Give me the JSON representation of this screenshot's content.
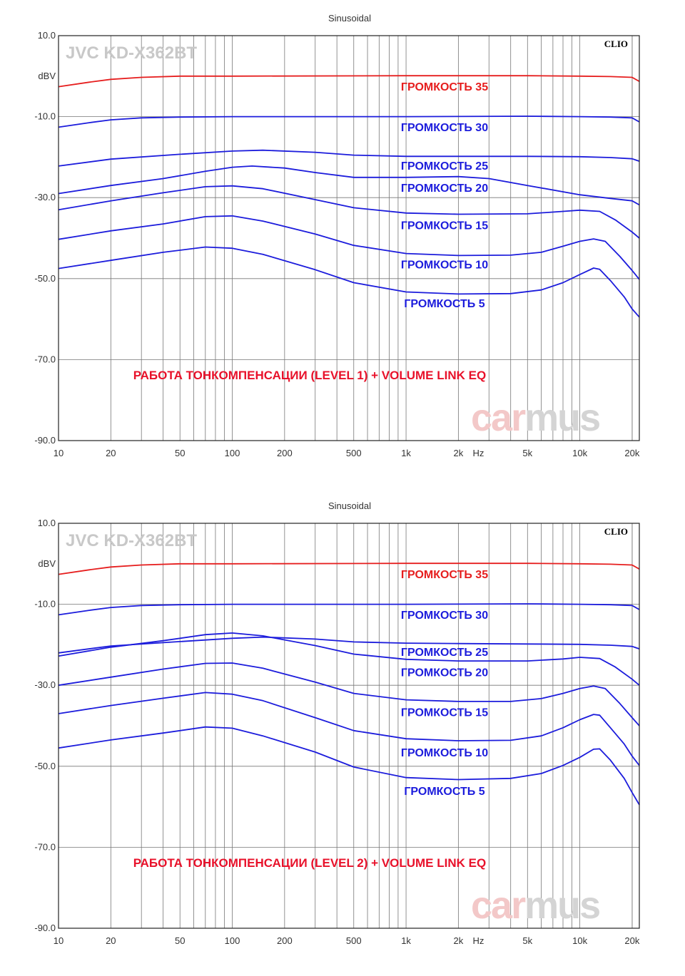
{
  "colors": {
    "red": "#e61e1e",
    "blue": "#1c1cdc",
    "grid": "#777777",
    "watermark_a": "#f3c8c8",
    "watermark_b": "#d4d4d4"
  },
  "chart_data": [
    {
      "type": "line",
      "title": "Sinusoidal",
      "model": "JVC KD-X362BT",
      "brand": "CLIO",
      "caption": "РАБОТА ТОНКОМПЕНСАЦИИ (LEVEL 1) + VOLUME LINK EQ",
      "watermark": [
        "car",
        "mus"
      ],
      "ylabel": "dBV",
      "xunit": "Hz",
      "xscale": "log",
      "xlim": [
        10,
        22000
      ],
      "ylim": [
        -90,
        10
      ],
      "yticks": [
        10,
        -10,
        -30,
        -50,
        -70,
        -90
      ],
      "ytick_labels": [
        "10.0",
        "-10.0",
        "-30.0",
        "-50.0",
        "-70.0",
        "-90.0"
      ],
      "xticks": [
        10,
        20,
        50,
        100,
        200,
        500,
        1000,
        2000,
        5000,
        10000,
        20000
      ],
      "xtick_labels": [
        "10",
        "20",
        "50",
        "100",
        "200",
        "500",
        "1k",
        "2k",
        "5k",
        "10k",
        "20k"
      ],
      "grid": true,
      "series": [
        {
          "name": "ГРОМКОСТЬ 35",
          "color": "red",
          "label_x": 1650,
          "label_y": -2.5,
          "points": [
            [
              10,
              -2.6
            ],
            [
              15,
              -1.5
            ],
            [
              20,
              -0.8
            ],
            [
              30,
              -0.3
            ],
            [
              50,
              0
            ],
            [
              100,
              0
            ],
            [
              1000,
              0.1
            ],
            [
              5000,
              0.1
            ],
            [
              10000,
              0
            ],
            [
              15000,
              -0.1
            ],
            [
              20000,
              -0.3
            ],
            [
              22000,
              -1.3
            ]
          ]
        },
        {
          "name": "ГРОМКОСТЬ 30",
          "color": "blue",
          "label_x": 1650,
          "label_y": -12.5,
          "points": [
            [
              10,
              -12.6
            ],
            [
              15,
              -11.5
            ],
            [
              20,
              -10.8
            ],
            [
              30,
              -10.3
            ],
            [
              50,
              -10.1
            ],
            [
              100,
              -10
            ],
            [
              1000,
              -10
            ],
            [
              5000,
              -9.9
            ],
            [
              10000,
              -10
            ],
            [
              15000,
              -10.1
            ],
            [
              20000,
              -10.3
            ],
            [
              22000,
              -11.3
            ]
          ]
        },
        {
          "name": "ГРОМКОСТЬ 25",
          "color": "blue",
          "label_x": 1650,
          "label_y": -22,
          "points": [
            [
              10,
              -22.2
            ],
            [
              20,
              -20.5
            ],
            [
              50,
              -19.3
            ],
            [
              100,
              -18.5
            ],
            [
              150,
              -18.3
            ],
            [
              300,
              -18.8
            ],
            [
              500,
              -19.5
            ],
            [
              1000,
              -19.8
            ],
            [
              2000,
              -19.8
            ],
            [
              5000,
              -19.8
            ],
            [
              10000,
              -19.9
            ],
            [
              15000,
              -20.1
            ],
            [
              20000,
              -20.4
            ],
            [
              22000,
              -21
            ]
          ]
        },
        {
          "name": "ГРОМКОСТЬ 20",
          "color": "blue",
          "label_x": 1650,
          "label_y": -27.5,
          "points": [
            [
              10,
              -29
            ],
            [
              20,
              -27
            ],
            [
              40,
              -25.3
            ],
            [
              70,
              -23.5
            ],
            [
              100,
              -22.5
            ],
            [
              130,
              -22.2
            ],
            [
              200,
              -22.7
            ],
            [
              300,
              -23.8
            ],
            [
              500,
              -25
            ],
            [
              1000,
              -25
            ],
            [
              2000,
              -24.8
            ],
            [
              3000,
              -25.3
            ],
            [
              5000,
              -27
            ],
            [
              10000,
              -29.3
            ],
            [
              15000,
              -30.2
            ],
            [
              20000,
              -30.8
            ],
            [
              22000,
              -31.8
            ]
          ]
        },
        {
          "name": "ГРОМКОСТЬ 15",
          "color": "blue",
          "label_x": 1650,
          "label_y": -36.7,
          "points": [
            [
              10,
              -33
            ],
            [
              20,
              -30.8
            ],
            [
              40,
              -28.8
            ],
            [
              70,
              -27.3
            ],
            [
              100,
              -27.1
            ],
            [
              150,
              -27.8
            ],
            [
              300,
              -30.5
            ],
            [
              500,
              -32.5
            ],
            [
              1000,
              -33.8
            ],
            [
              2000,
              -34.1
            ],
            [
              5000,
              -34
            ],
            [
              8000,
              -33.4
            ],
            [
              10000,
              -33.1
            ],
            [
              13000,
              -33.4
            ],
            [
              16000,
              -35.5
            ],
            [
              20000,
              -38.5
            ],
            [
              22000,
              -40
            ]
          ]
        },
        {
          "name": "ГРОМКОСТЬ 10",
          "color": "blue",
          "label_x": 1650,
          "label_y": -46.4,
          "points": [
            [
              10,
              -40.3
            ],
            [
              20,
              -38.2
            ],
            [
              40,
              -36.5
            ],
            [
              70,
              -34.7
            ],
            [
              100,
              -34.5
            ],
            [
              150,
              -35.8
            ],
            [
              300,
              -39
            ],
            [
              500,
              -41.8
            ],
            [
              1000,
              -43.8
            ],
            [
              2000,
              -44.3
            ],
            [
              4000,
              -44.2
            ],
            [
              6000,
              -43.5
            ],
            [
              8000,
              -42
            ],
            [
              10000,
              -40.8
            ],
            [
              12000,
              -40.2
            ],
            [
              14000,
              -40.8
            ],
            [
              17000,
              -44.5
            ],
            [
              20000,
              -48
            ],
            [
              22000,
              -50.2
            ]
          ]
        },
        {
          "name": "ГРОМКОСТЬ 5",
          "color": "blue",
          "label_x": 1650,
          "label_y": -56,
          "points": [
            [
              10,
              -47.5
            ],
            [
              20,
              -45.5
            ],
            [
              40,
              -43.5
            ],
            [
              70,
              -42.2
            ],
            [
              100,
              -42.5
            ],
            [
              150,
              -44
            ],
            [
              300,
              -47.8
            ],
            [
              500,
              -51
            ],
            [
              1000,
              -53.3
            ],
            [
              2000,
              -53.8
            ],
            [
              4000,
              -53.7
            ],
            [
              6000,
              -52.8
            ],
            [
              8000,
              -51
            ],
            [
              10000,
              -49
            ],
            [
              12000,
              -47.4
            ],
            [
              13000,
              -47.7
            ],
            [
              15000,
              -50.5
            ],
            [
              18000,
              -54.5
            ],
            [
              20000,
              -57.5
            ],
            [
              22000,
              -59.5
            ]
          ]
        }
      ]
    },
    {
      "type": "line",
      "title": "Sinusoidal",
      "model": "JVC KD-X362BT",
      "brand": "CLIO",
      "caption": "РАБОТА ТОНКОМПЕНСАЦИИ (LEVEL 2) + VOLUME LINK EQ",
      "watermark": [
        "car",
        "mus"
      ],
      "ylabel": "dBV",
      "xunit": "Hz",
      "xscale": "log",
      "xlim": [
        10,
        22000
      ],
      "ylim": [
        -90,
        10
      ],
      "yticks": [
        10,
        -10,
        -30,
        -50,
        -70,
        -90
      ],
      "ytick_labels": [
        "10.0",
        "-10.0",
        "-30.0",
        "-50.0",
        "-70.0",
        "-90.0"
      ],
      "xticks": [
        10,
        20,
        50,
        100,
        200,
        500,
        1000,
        2000,
        5000,
        10000,
        20000
      ],
      "xtick_labels": [
        "10",
        "20",
        "50",
        "100",
        "200",
        "500",
        "1k",
        "2k",
        "5k",
        "10k",
        "20k"
      ],
      "grid": true,
      "series": [
        {
          "name": "ГРОМКОСТЬ 35",
          "color": "red",
          "label_x": 1650,
          "label_y": -2.5,
          "points": [
            [
              10,
              -2.6
            ],
            [
              15,
              -1.5
            ],
            [
              20,
              -0.8
            ],
            [
              30,
              -0.3
            ],
            [
              50,
              0
            ],
            [
              100,
              0
            ],
            [
              1000,
              0.1
            ],
            [
              5000,
              0.1
            ],
            [
              10000,
              0
            ],
            [
              15000,
              -0.1
            ],
            [
              20000,
              -0.3
            ],
            [
              22000,
              -1.3
            ]
          ]
        },
        {
          "name": "ГРОМКОСТЬ 30",
          "color": "blue",
          "label_x": 1650,
          "label_y": -12.5,
          "points": [
            [
              10,
              -12.6
            ],
            [
              15,
              -11.5
            ],
            [
              20,
              -10.8
            ],
            [
              30,
              -10.3
            ],
            [
              50,
              -10.1
            ],
            [
              100,
              -10
            ],
            [
              1000,
              -10
            ],
            [
              5000,
              -9.9
            ],
            [
              10000,
              -10
            ],
            [
              15000,
              -10.1
            ],
            [
              20000,
              -10.3
            ],
            [
              22000,
              -11.3
            ]
          ]
        },
        {
          "name": "ГРОМКОСТЬ 25",
          "color": "blue",
          "label_x": 1650,
          "label_y": -21.7,
          "points": [
            [
              10,
              -22
            ],
            [
              20,
              -20.3
            ],
            [
              50,
              -19.2
            ],
            [
              100,
              -18.4
            ],
            [
              150,
              -18.1
            ],
            [
              300,
              -18.6
            ],
            [
              500,
              -19.3
            ],
            [
              1000,
              -19.6
            ],
            [
              2000,
              -19.7
            ],
            [
              5000,
              -19.8
            ],
            [
              10000,
              -19.9
            ],
            [
              15000,
              -20.1
            ],
            [
              20000,
              -20.4
            ],
            [
              22000,
              -21
            ]
          ]
        },
        {
          "name": "ГРОМКОСТЬ 20",
          "color": "blue",
          "label_x": 1650,
          "label_y": -26.7,
          "points": [
            [
              10,
              -22.8
            ],
            [
              20,
              -20.6
            ],
            [
              40,
              -19
            ],
            [
              70,
              -17.5
            ],
            [
              100,
              -17.1
            ],
            [
              150,
              -17.8
            ],
            [
              300,
              -20.2
            ],
            [
              500,
              -22.3
            ],
            [
              1000,
              -23.6
            ],
            [
              2000,
              -24
            ],
            [
              5000,
              -24
            ],
            [
              8000,
              -23.5
            ],
            [
              10000,
              -23.1
            ],
            [
              13000,
              -23.4
            ],
            [
              16000,
              -25.5
            ],
            [
              20000,
              -28.5
            ],
            [
              22000,
              -30
            ]
          ]
        },
        {
          "name": "ГРОМКОСТЬ 15",
          "color": "blue",
          "label_x": 1650,
          "label_y": -36.6,
          "points": [
            [
              10,
              -30
            ],
            [
              20,
              -28
            ],
            [
              40,
              -26
            ],
            [
              70,
              -24.6
            ],
            [
              100,
              -24.5
            ],
            [
              150,
              -25.8
            ],
            [
              300,
              -29.2
            ],
            [
              500,
              -32
            ],
            [
              1000,
              -33.6
            ],
            [
              2000,
              -34
            ],
            [
              4000,
              -34
            ],
            [
              6000,
              -33.3
            ],
            [
              8000,
              -32
            ],
            [
              10000,
              -30.8
            ],
            [
              12000,
              -30.2
            ],
            [
              14000,
              -30.8
            ],
            [
              17000,
              -34.5
            ],
            [
              20000,
              -38
            ],
            [
              22000,
              -40
            ]
          ]
        },
        {
          "name": "ГРОМКОСТЬ 10",
          "color": "blue",
          "label_x": 1650,
          "label_y": -46.5,
          "points": [
            [
              10,
              -37
            ],
            [
              20,
              -35
            ],
            [
              40,
              -33.2
            ],
            [
              70,
              -31.8
            ],
            [
              100,
              -32.2
            ],
            [
              150,
              -33.8
            ],
            [
              300,
              -38
            ],
            [
              500,
              -41.2
            ],
            [
              1000,
              -43.2
            ],
            [
              2000,
              -43.7
            ],
            [
              4000,
              -43.6
            ],
            [
              6000,
              -42.5
            ],
            [
              8000,
              -40.5
            ],
            [
              10000,
              -38.5
            ],
            [
              12000,
              -37.2
            ],
            [
              13000,
              -37.4
            ],
            [
              15000,
              -40.5
            ],
            [
              18000,
              -44.5
            ],
            [
              20000,
              -47.5
            ],
            [
              22000,
              -49.8
            ]
          ]
        },
        {
          "name": "ГРОМКОСТЬ 5",
          "color": "blue",
          "label_x": 1650,
          "label_y": -56,
          "points": [
            [
              10,
              -45.5
            ],
            [
              20,
              -43.5
            ],
            [
              40,
              -41.8
            ],
            [
              70,
              -40.3
            ],
            [
              100,
              -40.6
            ],
            [
              150,
              -42.5
            ],
            [
              300,
              -46.5
            ],
            [
              500,
              -50.2
            ],
            [
              1000,
              -52.8
            ],
            [
              2000,
              -53.3
            ],
            [
              4000,
              -53
            ],
            [
              6000,
              -51.8
            ],
            [
              8000,
              -49.8
            ],
            [
              10000,
              -47.8
            ],
            [
              12000,
              -45.8
            ],
            [
              13000,
              -45.7
            ],
            [
              15000,
              -48.5
            ],
            [
              18000,
              -53
            ],
            [
              20000,
              -56.5
            ],
            [
              22000,
              -59.5
            ]
          ]
        }
      ]
    }
  ]
}
